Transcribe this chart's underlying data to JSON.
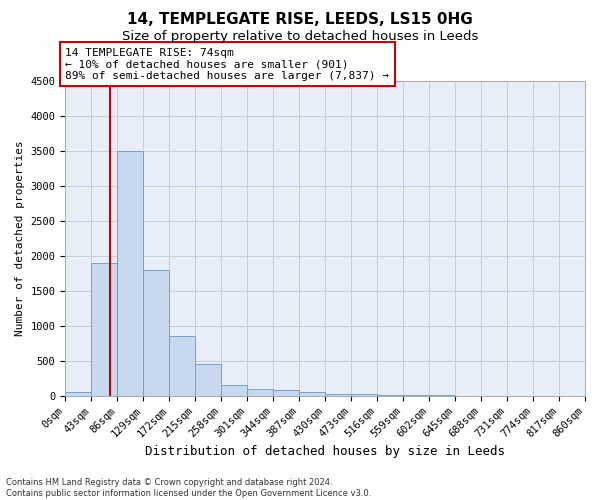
{
  "title1": "14, TEMPLEGATE RISE, LEEDS, LS15 0HG",
  "title2": "Size of property relative to detached houses in Leeds",
  "xlabel": "Distribution of detached houses by size in Leeds",
  "ylabel": "Number of detached properties",
  "bin_edges": [
    0,
    43,
    86,
    129,
    172,
    215,
    258,
    301,
    344,
    387,
    430,
    473,
    516,
    559,
    602,
    645,
    688,
    731,
    774,
    817,
    860
  ],
  "bar_heights": [
    50,
    1900,
    3500,
    1800,
    850,
    450,
    150,
    100,
    80,
    50,
    30,
    20,
    10,
    5,
    2,
    1,
    1,
    0,
    0,
    0
  ],
  "bar_color": "#c8d8ee",
  "bar_edge_color": "#6699cc",
  "vline_x": 74,
  "vline_color": "#cc0000",
  "annotation_text": "14 TEMPLEGATE RISE: 74sqm\n← 10% of detached houses are smaller (901)\n89% of semi-detached houses are larger (7,837) →",
  "annotation_box_color": "#cc0000",
  "ylim": [
    0,
    4500
  ],
  "yticks": [
    0,
    500,
    1000,
    1500,
    2000,
    2500,
    3000,
    3500,
    4000,
    4500
  ],
  "bg_color": "#ffffff",
  "plot_bg_color": "#e8eef8",
  "grid_color": "#c8d0e0",
  "footer1": "Contains HM Land Registry data © Crown copyright and database right 2024.",
  "footer2": "Contains public sector information licensed under the Open Government Licence v3.0.",
  "title1_fontsize": 11,
  "title2_fontsize": 9.5,
  "xlabel_fontsize": 9,
  "ylabel_fontsize": 8,
  "tick_fontsize": 7.5,
  "annotation_fontsize": 8,
  "footer_fontsize": 6
}
